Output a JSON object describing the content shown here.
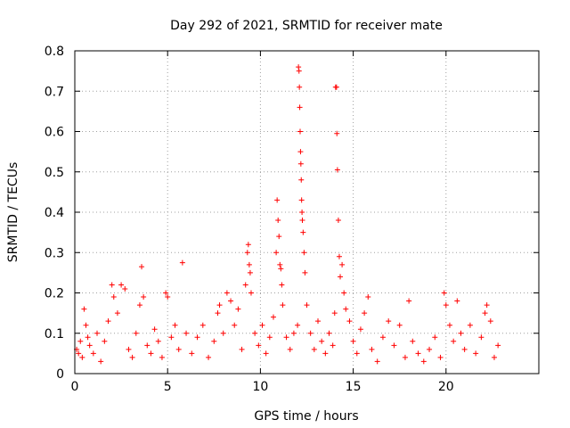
{
  "chart_data": {
    "type": "scatter",
    "title": "Day 292 of 2021, SRMTID for receiver mate",
    "xlabel": "GPS time / hours",
    "ylabel": "SRMTID / TECUs",
    "xlim": [
      0,
      25
    ],
    "ylim": [
      0,
      0.8
    ],
    "xticks": [
      0,
      5,
      10,
      15,
      20
    ],
    "yticks": [
      0,
      0.1,
      0.2,
      0.3,
      0.4,
      0.5,
      0.6,
      0.7,
      0.8
    ],
    "xtick_labels": [
      "0",
      "5",
      "10",
      "15",
      "20"
    ],
    "ytick_labels": [
      "0",
      "0.1",
      "0.2",
      "0.3",
      "0.4",
      "0.5",
      "0.6",
      "0.7",
      "0.8"
    ],
    "grid": true,
    "marker": "plus",
    "color": "#ff0000",
    "series": [
      {
        "name": "SRMTID",
        "points": [
          [
            0.1,
            0.06
          ],
          [
            0.2,
            0.05
          ],
          [
            0.3,
            0.08
          ],
          [
            0.4,
            0.04
          ],
          [
            0.5,
            0.16
          ],
          [
            0.6,
            0.12
          ],
          [
            0.7,
            0.09
          ],
          [
            0.8,
            0.07
          ],
          [
            1.0,
            0.05
          ],
          [
            1.2,
            0.1
          ],
          [
            1.4,
            0.03
          ],
          [
            1.6,
            0.08
          ],
          [
            1.8,
            0.13
          ],
          [
            2.0,
            0.22
          ],
          [
            2.1,
            0.19
          ],
          [
            2.3,
            0.15
          ],
          [
            2.5,
            0.22
          ],
          [
            2.7,
            0.21
          ],
          [
            2.9,
            0.06
          ],
          [
            3.1,
            0.04
          ],
          [
            3.3,
            0.1
          ],
          [
            3.5,
            0.17
          ],
          [
            3.6,
            0.265
          ],
          [
            3.7,
            0.19
          ],
          [
            3.9,
            0.07
          ],
          [
            4.1,
            0.05
          ],
          [
            4.3,
            0.11
          ],
          [
            4.5,
            0.08
          ],
          [
            4.7,
            0.04
          ],
          [
            4.9,
            0.2
          ],
          [
            5.0,
            0.19
          ],
          [
            5.2,
            0.09
          ],
          [
            5.4,
            0.12
          ],
          [
            5.6,
            0.06
          ],
          [
            5.8,
            0.275
          ],
          [
            6.0,
            0.1
          ],
          [
            6.3,
            0.05
          ],
          [
            6.6,
            0.09
          ],
          [
            6.9,
            0.12
          ],
          [
            7.2,
            0.04
          ],
          [
            7.5,
            0.08
          ],
          [
            7.7,
            0.15
          ],
          [
            7.8,
            0.17
          ],
          [
            8.0,
            0.1
          ],
          [
            8.2,
            0.2
          ],
          [
            8.4,
            0.18
          ],
          [
            8.6,
            0.12
          ],
          [
            8.8,
            0.16
          ],
          [
            9.0,
            0.06
          ],
          [
            9.2,
            0.22
          ],
          [
            9.3,
            0.3
          ],
          [
            9.35,
            0.32
          ],
          [
            9.4,
            0.27
          ],
          [
            9.45,
            0.25
          ],
          [
            9.5,
            0.2
          ],
          [
            9.7,
            0.1
          ],
          [
            9.9,
            0.07
          ],
          [
            10.1,
            0.12
          ],
          [
            10.3,
            0.05
          ],
          [
            10.5,
            0.09
          ],
          [
            10.7,
            0.14
          ],
          [
            10.85,
            0.3
          ],
          [
            10.9,
            0.43
          ],
          [
            10.95,
            0.38
          ],
          [
            11.0,
            0.34
          ],
          [
            11.05,
            0.27
          ],
          [
            11.1,
            0.26
          ],
          [
            11.15,
            0.22
          ],
          [
            11.2,
            0.17
          ],
          [
            11.4,
            0.09
          ],
          [
            11.6,
            0.06
          ],
          [
            11.8,
            0.1
          ],
          [
            12.0,
            0.12
          ],
          [
            12.05,
            0.76
          ],
          [
            12.08,
            0.75
          ],
          [
            12.1,
            0.71
          ],
          [
            12.12,
            0.66
          ],
          [
            12.14,
            0.6
          ],
          [
            12.16,
            0.55
          ],
          [
            12.18,
            0.52
          ],
          [
            12.2,
            0.48
          ],
          [
            12.22,
            0.43
          ],
          [
            12.24,
            0.4
          ],
          [
            12.26,
            0.38
          ],
          [
            12.3,
            0.35
          ],
          [
            12.35,
            0.3
          ],
          [
            12.4,
            0.25
          ],
          [
            12.5,
            0.17
          ],
          [
            12.7,
            0.1
          ],
          [
            12.9,
            0.06
          ],
          [
            13.1,
            0.13
          ],
          [
            13.3,
            0.08
          ],
          [
            13.5,
            0.05
          ],
          [
            13.7,
            0.1
          ],
          [
            13.9,
            0.07
          ],
          [
            14.0,
            0.15
          ],
          [
            14.05,
            0.71
          ],
          [
            14.1,
            0.71
          ],
          [
            14.12,
            0.595
          ],
          [
            14.15,
            0.505
          ],
          [
            14.2,
            0.38
          ],
          [
            14.25,
            0.29
          ],
          [
            14.3,
            0.24
          ],
          [
            14.4,
            0.27
          ],
          [
            14.5,
            0.2
          ],
          [
            14.6,
            0.16
          ],
          [
            14.8,
            0.13
          ],
          [
            15.0,
            0.08
          ],
          [
            15.2,
            0.05
          ],
          [
            15.4,
            0.11
          ],
          [
            15.6,
            0.15
          ],
          [
            15.8,
            0.19
          ],
          [
            16.0,
            0.06
          ],
          [
            16.3,
            0.03
          ],
          [
            16.6,
            0.09
          ],
          [
            16.9,
            0.13
          ],
          [
            17.2,
            0.07
          ],
          [
            17.5,
            0.12
          ],
          [
            17.8,
            0.04
          ],
          [
            18.0,
            0.18
          ],
          [
            18.2,
            0.08
          ],
          [
            18.5,
            0.05
          ],
          [
            18.8,
            0.03
          ],
          [
            19.1,
            0.06
          ],
          [
            19.4,
            0.09
          ],
          [
            19.7,
            0.04
          ],
          [
            19.9,
            0.2
          ],
          [
            20.0,
            0.17
          ],
          [
            20.2,
            0.12
          ],
          [
            20.4,
            0.08
          ],
          [
            20.6,
            0.18
          ],
          [
            20.8,
            0.1
          ],
          [
            21.0,
            0.06
          ],
          [
            21.3,
            0.12
          ],
          [
            21.6,
            0.05
          ],
          [
            21.9,
            0.09
          ],
          [
            22.1,
            0.15
          ],
          [
            22.2,
            0.17
          ],
          [
            22.4,
            0.13
          ],
          [
            22.6,
            0.04
          ],
          [
            22.8,
            0.07
          ]
        ]
      }
    ]
  }
}
